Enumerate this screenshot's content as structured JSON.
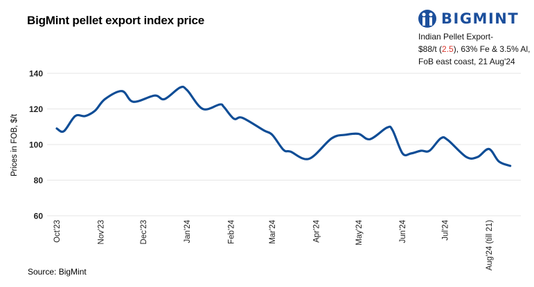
{
  "chart_data": {
    "type": "line",
    "title": "BigMint pellet export index price",
    "ylabel": "Prices in FOB, $/t",
    "xlabel": "",
    "ylim": [
      60,
      140
    ],
    "yticks": [
      "140",
      "120",
      "100",
      "80",
      "60"
    ],
    "grid": true,
    "xtick_labels": [
      "Oct'23",
      "Nov'23",
      "Dec'23",
      "Jan'24",
      "Feb'24",
      "Mar'24",
      "Apr'24",
      "May'24",
      "Jun'24",
      "Jul'24",
      "Aug'24 (till 21)"
    ],
    "xtick_dates": [
      "2023-10-01",
      "2023-11-01",
      "2023-12-01",
      "2024-01-01",
      "2024-02-01",
      "2024-03-01",
      "2024-04-01",
      "2024-05-01",
      "2024-06-01",
      "2024-07-01",
      "2024-08-01"
    ],
    "series": [
      {
        "color": "#0f4d96",
        "x": [
          "2023-10-01",
          "2023-10-06",
          "2023-10-14",
          "2023-10-21",
          "2023-10-28",
          "2023-11-04",
          "2023-11-16",
          "2023-11-24",
          "2023-12-09",
          "2023-12-16",
          "2023-12-27",
          "2024-01-01",
          "2024-01-12",
          "2024-01-24",
          "2024-01-27",
          "2024-02-03",
          "2024-02-09",
          "2024-02-24",
          "2024-03-01",
          "2024-03-09",
          "2024-03-14",
          "2024-03-27",
          "2024-04-12",
          "2024-04-22",
          "2024-05-01",
          "2024-05-09",
          "2024-05-21",
          "2024-05-25",
          "2024-06-01",
          "2024-06-07",
          "2024-06-14",
          "2024-06-20",
          "2024-06-28",
          "2024-07-03",
          "2024-07-16",
          "2024-07-24",
          "2024-08-01",
          "2024-08-08",
          "2024-08-16"
        ],
        "y": [
          109,
          107.5,
          116,
          116,
          119,
          125.5,
          130,
          124,
          127.5,
          125.5,
          132,
          130.5,
          120,
          122.5,
          121,
          114.5,
          115,
          108,
          105.5,
          97,
          96,
          92,
          103.5,
          105.5,
          106,
          103,
          109.5,
          108,
          95,
          95,
          96.5,
          96.5,
          103.5,
          102.5,
          93,
          93,
          97.5,
          90.5,
          88
        ]
      }
    ]
  },
  "logo": {
    "text": "BIGMINT"
  },
  "note": {
    "line1": "Indian Pellet Export-",
    "line2_a": "$88/t (",
    "line2_change": "2.5",
    "line2_b": "), 63% Fe & 3.5% Al,",
    "line3": "FoB east coast,  21 Aug'24"
  },
  "source": "Source: BigMint"
}
